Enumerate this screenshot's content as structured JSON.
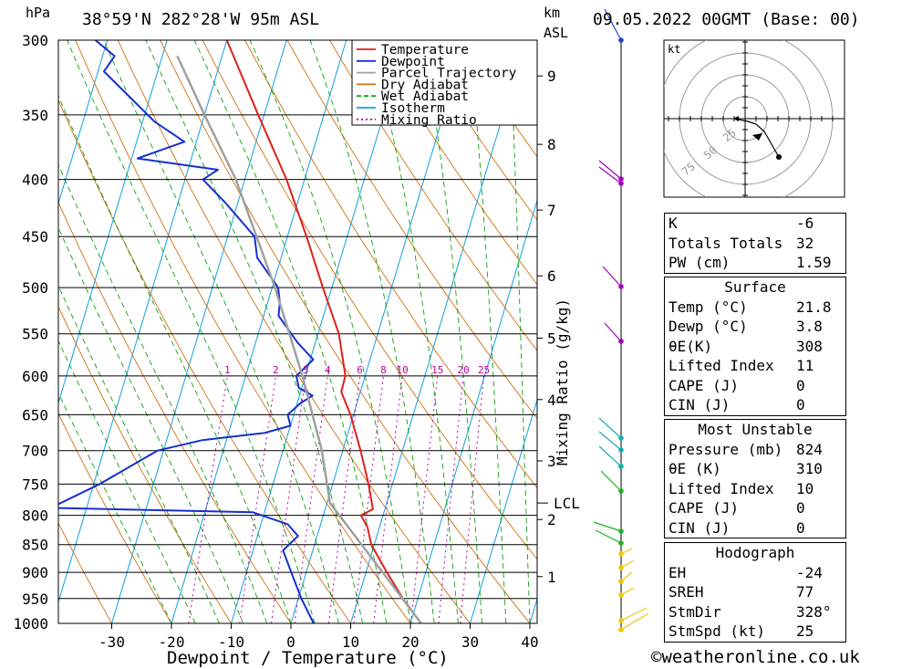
{
  "header": {
    "pressure_unit": "hPa",
    "location": "38°59'N  282°28'W  95m  ASL",
    "km_label": "km",
    "asl_label": "ASL",
    "datetime": "09.05.2022  00GMT  (Base: 00)"
  },
  "chart_data": {
    "type": "line",
    "title": "",
    "xlabel": "Dewpoint / Temperature (°C)",
    "ylabel": "hPa",
    "y2label": "Mixing Ratio (g/kg)",
    "x_ticks": [
      -30,
      -20,
      -10,
      0,
      10,
      20,
      30,
      40
    ],
    "xlim": [
      -40,
      40
    ],
    "ylim": [
      1000,
      300
    ],
    "y_scale": "log",
    "pressure_ticks": [
      300,
      350,
      400,
      450,
      500,
      550,
      600,
      650,
      700,
      750,
      800,
      850,
      900,
      950,
      1000
    ],
    "km_ticks": [
      {
        "label": "1",
        "p": 908
      },
      {
        "label": "2",
        "p": 807
      },
      {
        "label": "3",
        "p": 715
      },
      {
        "label": "4",
        "p": 630
      },
      {
        "label": "5",
        "p": 555
      },
      {
        "label": "6",
        "p": 488
      },
      {
        "label": "7",
        "p": 426
      },
      {
        "label": "8",
        "p": 372
      },
      {
        "label": "9",
        "p": 323
      }
    ],
    "lcl": {
      "label": "LCL",
      "p": 780
    },
    "mixing_ratio_labels": [
      "1",
      "2",
      "3",
      "4",
      "6",
      "8",
      "10",
      "15",
      "20",
      "25"
    ],
    "mixing_ratio_values": [
      1,
      2,
      3,
      4,
      6,
      8,
      10,
      15,
      20,
      25
    ],
    "legend": {
      "position": "top-right",
      "entries": [
        {
          "name": "Temperature",
          "color": "#e0201a",
          "style": "solid"
        },
        {
          "name": "Dewpoint",
          "color": "#1530d0",
          "style": "solid"
        },
        {
          "name": "Parcel Trajectory",
          "color": "#a0a0a0",
          "style": "solid"
        },
        {
          "name": "Dry Adiabat",
          "color": "#d07010",
          "style": "solid"
        },
        {
          "name": "Wet Adiabat",
          "color": "#10a010",
          "style": "dashed"
        },
        {
          "name": "Isotherm",
          "color": "#10a0e0",
          "style": "solid"
        },
        {
          "name": "Mixing Ratio",
          "color": "#c000a0",
          "style": "dotted"
        }
      ]
    },
    "series": [
      {
        "name": "Temperature",
        "color": "#e0201a",
        "points": [
          {
            "p": 1000,
            "t": 21.8
          },
          {
            "p": 950,
            "t": 17.5
          },
          {
            "p": 900,
            "t": 13.5
          },
          {
            "p": 850,
            "t": 9.5
          },
          {
            "p": 820,
            "t": 8.0
          },
          {
            "p": 800,
            "t": 6.3
          },
          {
            "p": 790,
            "t": 8.0
          },
          {
            "p": 750,
            "t": 6.0
          },
          {
            "p": 700,
            "t": 3.0
          },
          {
            "p": 650,
            "t": -0.5
          },
          {
            "p": 620,
            "t": -3.2
          },
          {
            "p": 600,
            "t": -3.3
          },
          {
            "p": 550,
            "t": -6.5
          },
          {
            "p": 500,
            "t": -11.5
          },
          {
            "p": 450,
            "t": -16.8
          },
          {
            "p": 400,
            "t": -23.0
          },
          {
            "p": 350,
            "t": -31.0
          },
          {
            "p": 300,
            "t": -40.0
          }
        ]
      },
      {
        "name": "Dewpoint",
        "color": "#1530d0",
        "points": [
          {
            "p": 1000,
            "t": 3.8
          },
          {
            "p": 950,
            "t": 0.5
          },
          {
            "p": 900,
            "t": -2.5
          },
          {
            "p": 860,
            "t": -5.0
          },
          {
            "p": 835,
            "t": -3.2
          },
          {
            "p": 815,
            "t": -5.5
          },
          {
            "p": 795,
            "t": -12.0
          },
          {
            "p": 788,
            "t": -46.0
          },
          {
            "p": 750,
            "t": -39.0
          },
          {
            "p": 700,
            "t": -31.0
          },
          {
            "p": 685,
            "t": -24.0
          },
          {
            "p": 675,
            "t": -14.0
          },
          {
            "p": 665,
            "t": -10.0
          },
          {
            "p": 650,
            "t": -11.0
          },
          {
            "p": 635,
            "t": -9.5
          },
          {
            "p": 625,
            "t": -7.8
          },
          {
            "p": 615,
            "t": -10.5
          },
          {
            "p": 600,
            "t": -11.5
          },
          {
            "p": 580,
            "t": -9.5
          },
          {
            "p": 560,
            "t": -13.0
          },
          {
            "p": 530,
            "t": -17.5
          },
          {
            "p": 515,
            "t": -18.0
          },
          {
            "p": 500,
            "t": -19.0
          },
          {
            "p": 470,
            "t": -24.0
          },
          {
            "p": 450,
            "t": -25.5
          },
          {
            "p": 420,
            "t": -32.0
          },
          {
            "p": 400,
            "t": -37.0
          },
          {
            "p": 392,
            "t": -35.0
          },
          {
            "p": 383,
            "t": -49.0
          },
          {
            "p": 370,
            "t": -42.0
          },
          {
            "p": 355,
            "t": -48.0
          },
          {
            "p": 320,
            "t": -59.0
          },
          {
            "p": 310,
            "t": -58.0
          },
          {
            "p": 300,
            "t": -62.0
          }
        ]
      },
      {
        "name": "Parcel Trajectory",
        "color": "#a0a0a0",
        "points": [
          {
            "p": 1000,
            "t": 21.8
          },
          {
            "p": 900,
            "t": 12.8
          },
          {
            "p": 780,
            "t": 0.5
          },
          {
            "p": 700,
            "t": -3.5
          },
          {
            "p": 600,
            "t": -10.5
          },
          {
            "p": 500,
            "t": -19.5
          },
          {
            "p": 400,
            "t": -31.5
          },
          {
            "p": 350,
            "t": -40.0
          },
          {
            "p": 310,
            "t": -47.5
          }
        ]
      }
    ],
    "wind_profile_colors": [
      "#f0c800",
      "#20b020",
      "#10b0b0",
      "#a000c0",
      "#2040d0"
    ]
  },
  "hodograph": {
    "unit": "kt",
    "ring_labels": [
      "25",
      "50",
      "75"
    ]
  },
  "indices": {
    "k_label": "K",
    "k_value": "-6",
    "tt_label": "Totals Totals",
    "tt_value": "32",
    "pw_label": "PW (cm)",
    "pw_value": "1.59"
  },
  "surface": {
    "title": "Surface",
    "temp_label": "Temp (°C)",
    "temp_value": "21.8",
    "dewp_label": "Dewp (°C)",
    "dewp_value": "3.8",
    "theta_label": "θE(K)",
    "theta_value": "308",
    "li_label": "Lifted Index",
    "li_value": "11",
    "cape_label": "CAPE (J)",
    "cape_value": "0",
    "cin_label": "CIN (J)",
    "cin_value": "0"
  },
  "most_unstable": {
    "title": "Most Unstable",
    "pressure_label": "Pressure (mb)",
    "pressure_value": "824",
    "theta_label": "θE (K)",
    "theta_value": "310",
    "li_label": "Lifted Index",
    "li_value": "10",
    "cape_label": "CAPE (J)",
    "cape_value": "0",
    "cin_label": "CIN (J)",
    "cin_value": "0"
  },
  "hodo_params": {
    "title": "Hodograph",
    "eh_label": "EH",
    "eh_value": "-24",
    "sreh_label": "SREH",
    "sreh_value": "77",
    "stmdir_label": "StmDir",
    "stmdir_value": "328°",
    "stmspd_label": "StmSpd (kt)",
    "stmspd_value": "25"
  },
  "footer": {
    "copyright": "©weatheronline.co.uk"
  }
}
